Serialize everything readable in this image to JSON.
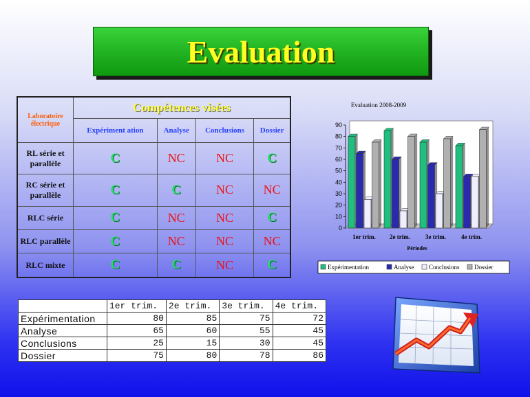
{
  "title": "Evaluation",
  "competences": {
    "lab_label": "Laboratoire électrique",
    "header": "Compétences visées",
    "columns": [
      "Expériment ation",
      "Analyse",
      "Conclusions",
      "Dossier"
    ],
    "rows": [
      {
        "label": "RL série et parallèle",
        "values": [
          "C",
          "NC",
          "NC",
          "C"
        ]
      },
      {
        "label": "RC série et parallèle",
        "values": [
          "C",
          "C",
          "NC",
          "NC"
        ]
      },
      {
        "label": "RLC série",
        "values": [
          "C",
          "NC",
          "NC",
          "C"
        ]
      },
      {
        "label": "RLC parallèle",
        "values": [
          "C",
          "NC",
          "NC",
          "NC"
        ]
      },
      {
        "label": "RLC mixte",
        "values": [
          "C",
          "C",
          "NC",
          "C"
        ]
      }
    ]
  },
  "chart_data": {
    "type": "bar",
    "title": "Evaluation 2008-2009",
    "xlabel": "Périodes",
    "ylabel": "",
    "categories": [
      "1er trim.",
      "2e trim.",
      "3e trim.",
      "4e trim."
    ],
    "ylim": [
      0,
      90
    ],
    "yticks": [
      0,
      10,
      20,
      30,
      40,
      50,
      60,
      70,
      80,
      90
    ],
    "legend_position": "bottom",
    "series": [
      {
        "name": "Expérimentation",
        "color": "#1fbf7f",
        "values": [
          80,
          85,
          75,
          72
        ]
      },
      {
        "name": "Analyse",
        "color": "#2a2ab0",
        "values": [
          65,
          60,
          55,
          45
        ]
      },
      {
        "name": "Conclusions",
        "color": "#eeeeff",
        "values": [
          25,
          15,
          30,
          45
        ]
      },
      {
        "name": "Dossier",
        "color": "#b0b0b0",
        "values": [
          75,
          80,
          78,
          86
        ]
      }
    ]
  },
  "data_table": {
    "headers": [
      "",
      "1er trim.",
      "2e trim.",
      "3e trim.",
      "4e trim."
    ],
    "rows": [
      {
        "label": "Expérimentation",
        "values": [
          "80",
          "85",
          "75",
          "72"
        ]
      },
      {
        "label": "Analyse",
        "values": [
          "65",
          "60",
          "55",
          "45"
        ]
      },
      {
        "label": "Conclusions",
        "values": [
          "25",
          "15",
          "30",
          "45"
        ]
      },
      {
        "label": "Dossier",
        "values": [
          "75",
          "80",
          "78",
          "86"
        ]
      }
    ]
  },
  "clipart": {
    "icon": "rising-chart-icon"
  }
}
